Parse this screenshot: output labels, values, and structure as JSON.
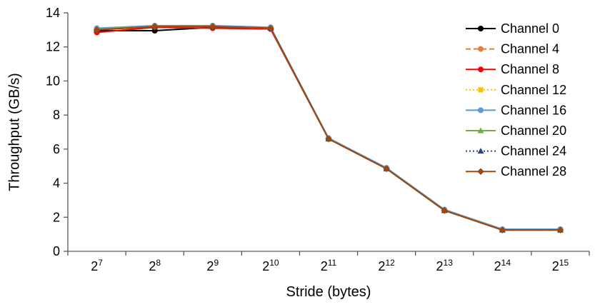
{
  "chart_data": {
    "type": "line",
    "xlabel": "Stride (bytes)",
    "ylabel": "Throughput (GB/s)",
    "categories": [
      "2^7",
      "2^8",
      "2^9",
      "2^10",
      "2^11",
      "2^12",
      "2^13",
      "2^14",
      "2^15"
    ],
    "ylim": [
      0,
      14
    ],
    "ytick_step": 2,
    "grid": false,
    "legend_position": "top-right-inside",
    "axis_color": "#595959",
    "series": [
      {
        "name": "Channel 0",
        "color": "#000000",
        "line": "solid",
        "marker": "circle",
        "values": [
          12.95,
          12.95,
          13.15,
          13.05,
          6.6,
          4.85,
          2.4,
          1.25,
          1.25
        ]
      },
      {
        "name": "Channel 4",
        "color": "#ED7D31",
        "line": "dash",
        "marker": "circle",
        "values": [
          13.0,
          13.2,
          13.2,
          13.1,
          6.6,
          4.85,
          2.4,
          1.25,
          1.25
        ]
      },
      {
        "name": "Channel 8",
        "color": "#FF0000",
        "line": "solid",
        "marker": "circle",
        "values": [
          12.85,
          13.15,
          13.1,
          13.05,
          6.6,
          4.85,
          2.4,
          1.25,
          1.25
        ]
      },
      {
        "name": "Channel 12",
        "color": "#FFC000",
        "line": "dot",
        "marker": "square",
        "values": [
          13.0,
          13.2,
          13.2,
          13.1,
          6.6,
          4.85,
          2.4,
          1.25,
          1.25
        ]
      },
      {
        "name": "Channel 16",
        "color": "#5B9BD5",
        "line": "solid",
        "marker": "circle",
        "values": [
          13.1,
          13.25,
          13.25,
          13.15,
          6.65,
          4.9,
          2.45,
          1.3,
          1.3
        ]
      },
      {
        "name": "Channel 20",
        "color": "#70AD47",
        "line": "solid",
        "marker": "triangle",
        "values": [
          13.05,
          13.2,
          13.2,
          13.1,
          6.6,
          4.85,
          2.4,
          1.25,
          1.25
        ]
      },
      {
        "name": "Channel 24",
        "color": "#264478",
        "line": "dot",
        "marker": "triangle",
        "values": [
          13.0,
          13.2,
          13.2,
          13.1,
          6.6,
          4.85,
          2.4,
          1.25,
          1.25
        ]
      },
      {
        "name": "Channel 28",
        "color": "#9E480E",
        "line": "solid",
        "marker": "diamond",
        "values": [
          13.0,
          13.2,
          13.2,
          13.1,
          6.6,
          4.85,
          2.4,
          1.25,
          1.25
        ]
      }
    ]
  }
}
